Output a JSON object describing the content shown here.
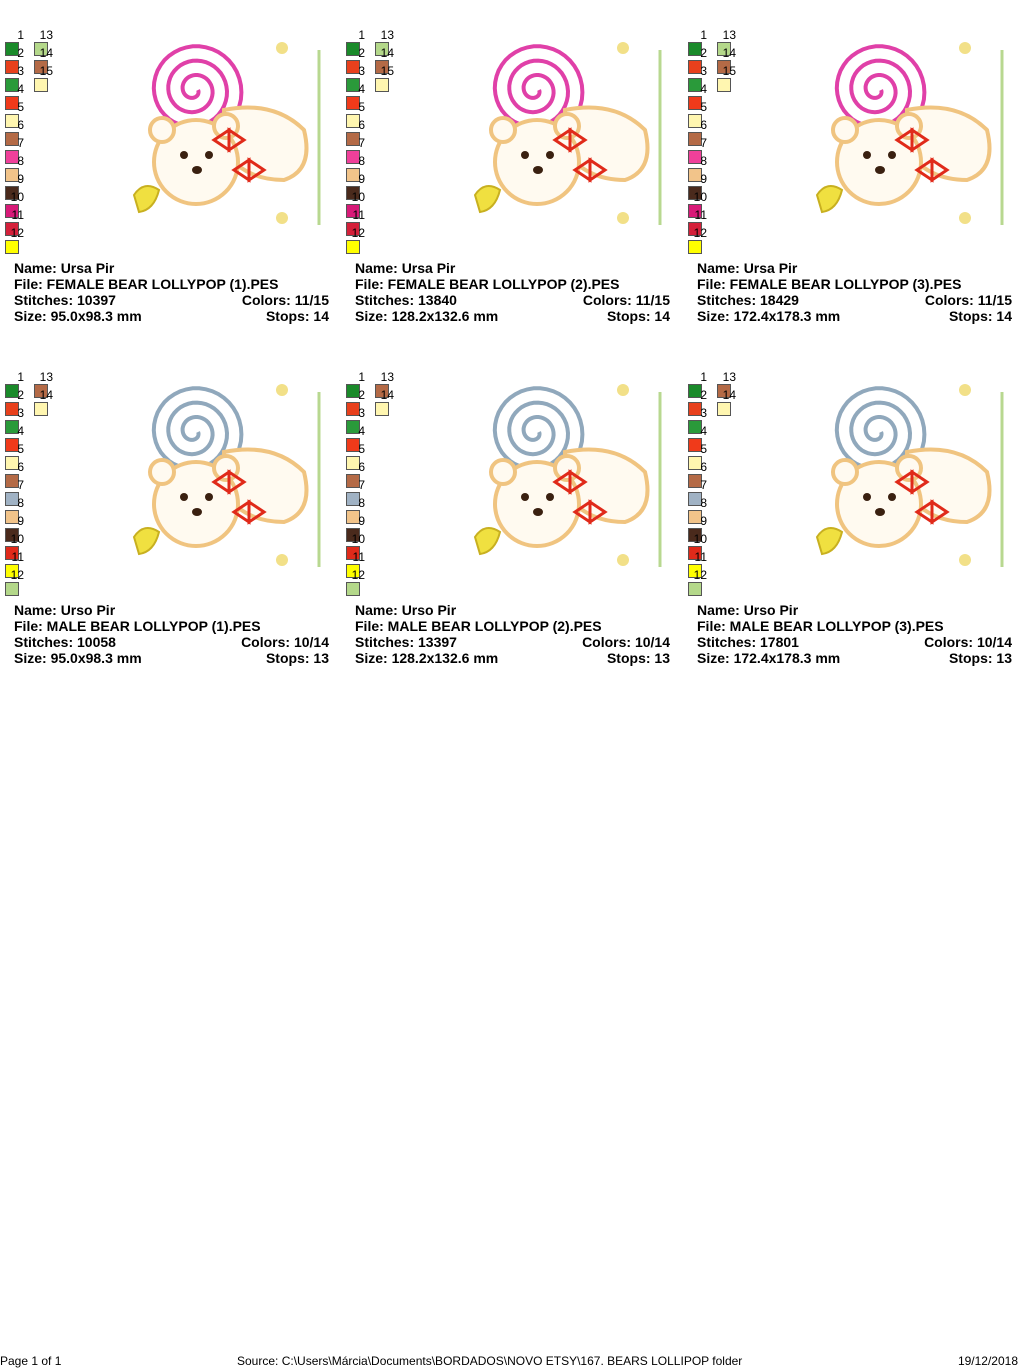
{
  "palette_colors": {
    "1": "#1a8a2a",
    "2": "#e8401c",
    "3": "#2a9a3a",
    "4": "#f03a1a",
    "5": "#fff6b0",
    "6": "#b46a46",
    "7f": "#f0409a",
    "7m": "#a0b2c4",
    "8": "#f2c48a",
    "9": "#4a2a1c",
    "10f": "#d81a78",
    "10m": "#e02a1a",
    "11f": "#d4203a",
    "11m": "#ffff00",
    "12f": "#ffff00",
    "12m": "#b4d88a",
    "13f": "#b4d88a",
    "13m": "#b46a46",
    "14": "#b46a46",
    "14m": "#fff6b0",
    "15": "#fff6b0"
  },
  "lollipop_colors": {
    "female": "#e040a8",
    "male": "#90a8bc"
  },
  "designs": [
    {
      "name_label": "Name:",
      "name": "Ursa Pir",
      "file_label": "File:",
      "file": "FEMALE BEAR LOLLYPOP (1).PES",
      "stitches_label": "Stitches:",
      "stitches": "10397",
      "colors_label": "Colors:",
      "colors": "11/15",
      "size_label": "Size:",
      "size": "95.0x98.3 mm",
      "stops_label": "Stops:",
      "stops": "14"
    },
    {
      "name_label": "Name:",
      "name": "Ursa Pir",
      "file_label": "File:",
      "file": "FEMALE BEAR LOLLYPOP (2).PES",
      "stitches_label": "Stitches:",
      "stitches": "13840",
      "colors_label": "Colors:",
      "colors": "11/15",
      "size_label": "Size:",
      "size": "128.2x132.6 mm",
      "stops_label": "Stops:",
      "stops": "14"
    },
    {
      "name_label": "Name:",
      "name": "Ursa Pir",
      "file_label": "File:",
      "file": "FEMALE BEAR LOLLYPOP (3).PES",
      "stitches_label": "Stitches:",
      "stitches": "18429",
      "colors_label": "Colors:",
      "colors": "11/15",
      "size_label": "Size:",
      "size": "172.4x178.3 mm",
      "stops_label": "Stops:",
      "stops": "14"
    },
    {
      "name_label": "Name:",
      "name": "Urso Pir",
      "file_label": "File:",
      "file": "MALE BEAR LOLLYPOP (1).PES",
      "stitches_label": "Stitches:",
      "stitches": "10058",
      "colors_label": "Colors:",
      "colors": "10/14",
      "size_label": "Size:",
      "size": "95.0x98.3 mm",
      "stops_label": "Stops:",
      "stops": "13"
    },
    {
      "name_label": "Name:",
      "name": "Urso Pir",
      "file_label": "File:",
      "file": "MALE BEAR LOLLYPOP (2).PES",
      "stitches_label": "Stitches:",
      "stitches": "13397",
      "colors_label": "Colors:",
      "colors": "10/14",
      "size_label": "Size:",
      "size": "128.2x132.6 mm",
      "stops_label": "Stops:",
      "stops": "13"
    },
    {
      "name_label": "Name:",
      "name": "Urso Pir",
      "file_label": "File:",
      "file": "MALE BEAR LOLLYPOP (3).PES",
      "stitches_label": "Stitches:",
      "stitches": "17801",
      "colors_label": "Colors:",
      "colors": "10/14",
      "size_label": "Size:",
      "size": "172.4x178.3 mm",
      "stops_label": "Stops:",
      "stops": "13"
    }
  ],
  "footer": {
    "page": "Page 1 of 1",
    "source": "Source: C:\\Users\\Márcia\\Documents\\BORDADOS\\NOVO ETSY\\167. BEARS LOLLIPOP folder",
    "date": "19/12/2018"
  }
}
